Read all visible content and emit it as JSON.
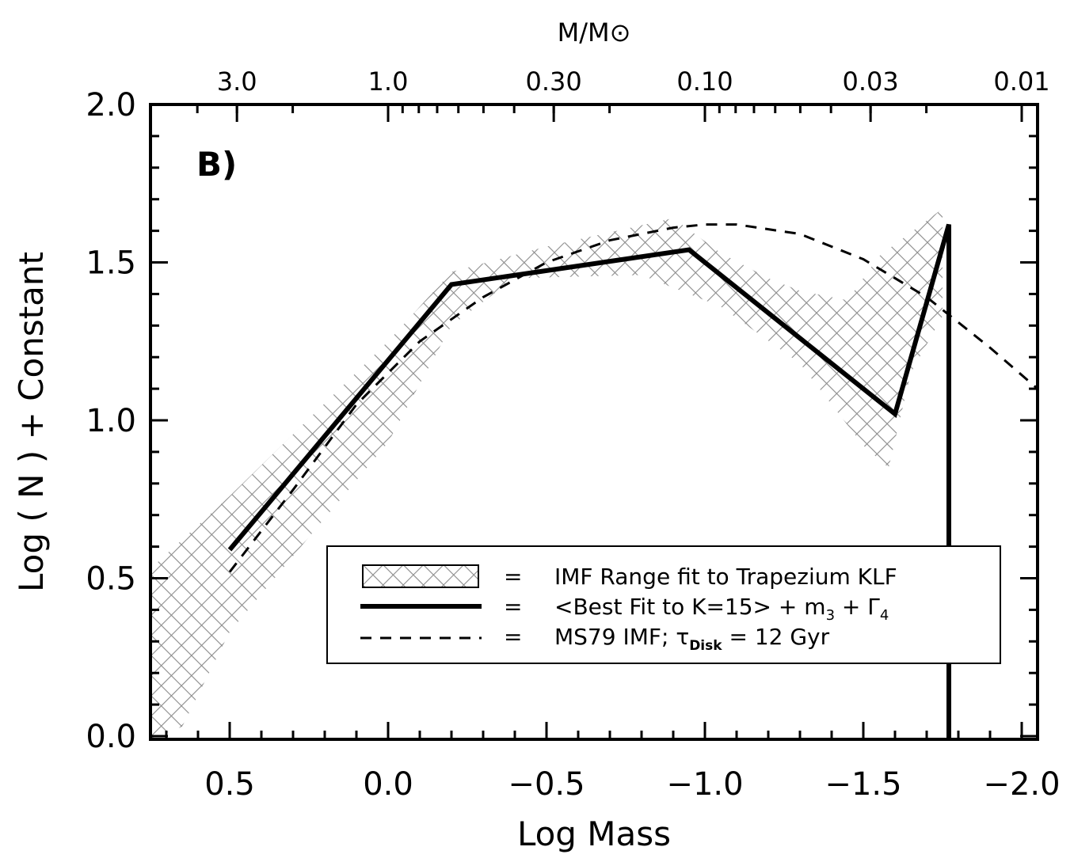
{
  "chart_data": {
    "type": "line",
    "panel_label": "B)",
    "xlabel": "Log Mass",
    "ylabel": "Log ( N ) + Constant",
    "top_xlabel": "M/M⊙",
    "xlim": [
      0.75,
      -2.05
    ],
    "ylim": [
      -0.01,
      2.0
    ],
    "x_reversed": true,
    "x_ticks": [
      0.5,
      0.0,
      -0.5,
      -1.0,
      -1.5,
      -2.0
    ],
    "x_tick_labels": [
      "0.5",
      "0.0",
      "−0.5",
      "−1.0",
      "−1.5",
      "−2.0"
    ],
    "y_ticks": [
      0.0,
      0.5,
      1.0,
      1.5,
      2.0
    ],
    "y_tick_labels": [
      "0.0",
      "0.5",
      "1.0",
      "1.5",
      "2.0"
    ],
    "top_ticks": [
      3.0,
      1.0,
      0.3,
      0.1,
      0.03,
      0.01
    ],
    "top_tick_labels": [
      "3.0",
      "1.0",
      "0.30",
      "0.10",
      "0.03",
      "0.01"
    ],
    "grid": false,
    "legend_position": "bottom-right",
    "series": [
      {
        "name": "IMF Range fit to Trapezium KLF",
        "style": "hatched-band",
        "color": "#8c8c8c",
        "upper": [
          [
            0.75,
            0.53
          ],
          [
            0.5,
            0.76
          ],
          [
            0.0,
            1.25
          ],
          [
            -0.2,
            1.47
          ],
          [
            -0.5,
            1.55
          ],
          [
            -0.9,
            1.64
          ],
          [
            -1.05,
            1.53
          ],
          [
            -1.2,
            1.45
          ],
          [
            -1.3,
            1.41
          ],
          [
            -1.45,
            1.38
          ],
          [
            -1.55,
            1.52
          ],
          [
            -1.75,
            1.67
          ]
        ],
        "lower": [
          [
            0.75,
            -0.01
          ],
          [
            0.65,
            0.03
          ],
          [
            0.5,
            0.33
          ],
          [
            0.0,
            0.93
          ],
          [
            -0.2,
            1.3
          ],
          [
            -0.4,
            1.45
          ],
          [
            -0.8,
            1.46
          ],
          [
            -1.05,
            1.36
          ],
          [
            -1.3,
            1.18
          ],
          [
            -1.5,
            0.92
          ],
          [
            -1.58,
            0.85
          ],
          [
            -1.65,
            1.15
          ],
          [
            -1.75,
            1.33
          ]
        ]
      },
      {
        "name": "<Best Fit to K=15> + m",
        "name_sub1": "3",
        "name_mid": " + Γ",
        "name_sub2": "4",
        "style": "solid",
        "color": "#000000",
        "points": [
          [
            0.5,
            0.59
          ],
          [
            -0.2,
            1.43
          ],
          [
            -0.95,
            1.54
          ],
          [
            -1.6,
            1.02
          ],
          [
            -1.77,
            1.62
          ],
          [
            -1.77,
            -0.01
          ]
        ]
      },
      {
        "name": "MS79 IMF; τ",
        "name_sub": "Disk",
        "name_tail": " = 12 Gyr",
        "style": "dashed",
        "color": "#000000",
        "points": [
          [
            0.5,
            0.52
          ],
          [
            0.3,
            0.78
          ],
          [
            0.1,
            1.05
          ],
          [
            -0.1,
            1.25
          ],
          [
            -0.3,
            1.39
          ],
          [
            -0.5,
            1.5
          ],
          [
            -0.7,
            1.57
          ],
          [
            -0.9,
            1.61
          ],
          [
            -1.0,
            1.62
          ],
          [
            -1.1,
            1.62
          ],
          [
            -1.3,
            1.59
          ],
          [
            -1.5,
            1.51
          ],
          [
            -1.7,
            1.39
          ],
          [
            -1.9,
            1.23
          ],
          [
            -2.05,
            1.1
          ]
        ]
      }
    ]
  }
}
